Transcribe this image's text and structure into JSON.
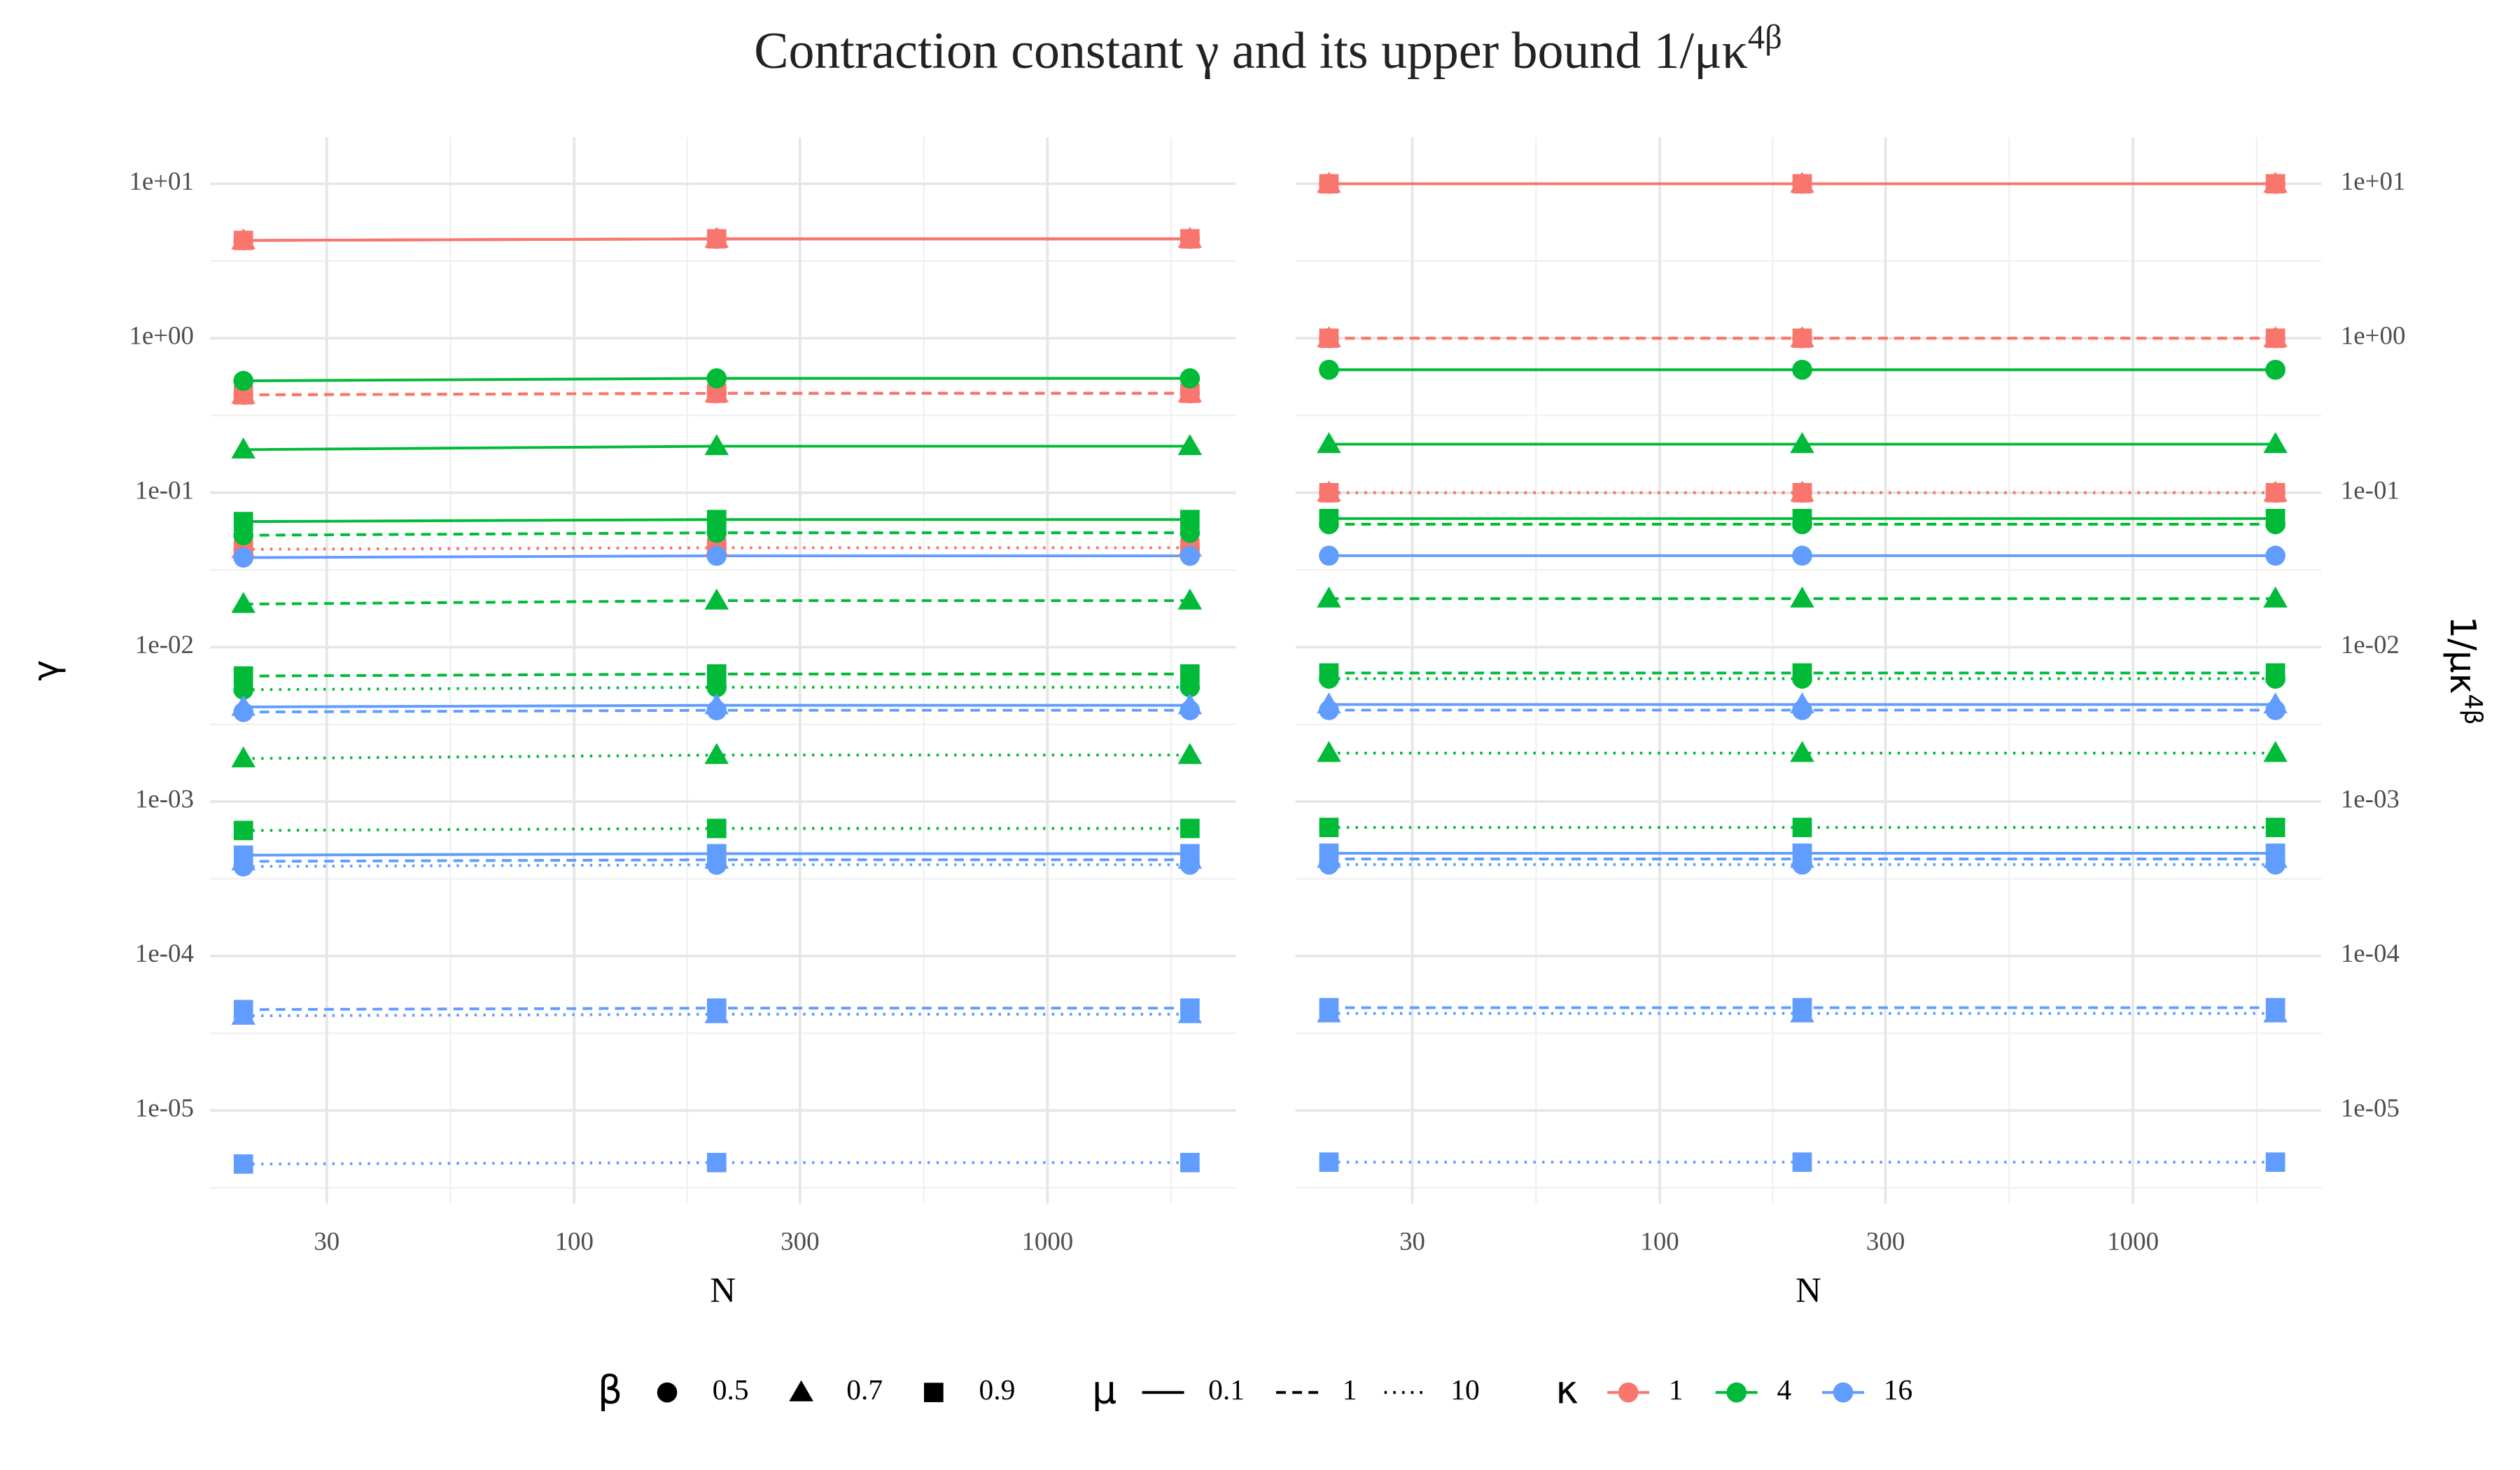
{
  "title": "Contraction constant γ and its upper bound 1/μκ",
  "title_sup": "4β",
  "legend": {
    "beta": {
      "title": "β",
      "labels": [
        0.5,
        0.7,
        0.9
      ],
      "shapes": [
        "circle",
        "triangle",
        "square"
      ]
    },
    "mu": {
      "title": "μ",
      "labels": [
        0.1,
        1,
        10
      ],
      "linetypes": [
        "solid",
        "dashed",
        "dotted"
      ]
    },
    "kappa": {
      "title": "κ",
      "labels": [
        1,
        4,
        16
      ],
      "colors": [
        "#F8766D",
        "#00BA38",
        "#619CFF"
      ]
    }
  },
  "chart_data": [
    {
      "type": "line",
      "log_x": true,
      "log_y": true,
      "grid": true,
      "minor_grid": true,
      "y_axis_side": "left",
      "xlabel": "N",
      "ylabel": "γ",
      "x": [
        20,
        200,
        2000
      ],
      "xlim": [
        17,
        2500
      ],
      "xticks": [
        30,
        100,
        300,
        1000
      ],
      "ylim": [
        2.5e-06,
        20
      ],
      "yticks": [
        {
          "value": 10,
          "label": "1e+01"
        },
        {
          "value": 1,
          "label": "1e+00"
        },
        {
          "value": 0.1,
          "label": "1e-01"
        },
        {
          "value": 0.01,
          "label": "1e-02"
        },
        {
          "value": 0.001,
          "label": "1e-03"
        },
        {
          "value": 0.0001,
          "label": "1e-04"
        },
        {
          "value": 1e-05,
          "label": "1e-05"
        }
      ],
      "series": [
        {
          "beta": 0.5,
          "mu": 0.1,
          "kappa": 1,
          "values": [
            4.3,
            4.4,
            4.4
          ]
        },
        {
          "beta": 0.5,
          "mu": 1,
          "kappa": 1,
          "values": [
            0.43,
            0.44,
            0.44
          ]
        },
        {
          "beta": 0.5,
          "mu": 10,
          "kappa": 1,
          "values": [
            0.043,
            0.044,
            0.044
          ]
        },
        {
          "beta": 0.7,
          "mu": 0.1,
          "kappa": 1,
          "values": [
            4.3,
            4.4,
            4.4
          ]
        },
        {
          "beta": 0.7,
          "mu": 1,
          "kappa": 1,
          "values": [
            0.43,
            0.44,
            0.44
          ]
        },
        {
          "beta": 0.7,
          "mu": 10,
          "kappa": 1,
          "values": [
            0.043,
            0.044,
            0.044
          ]
        },
        {
          "beta": 0.9,
          "mu": 0.1,
          "kappa": 1,
          "values": [
            4.3,
            4.4,
            4.4
          ]
        },
        {
          "beta": 0.9,
          "mu": 1,
          "kappa": 1,
          "values": [
            0.43,
            0.44,
            0.44
          ]
        },
        {
          "beta": 0.9,
          "mu": 10,
          "kappa": 1,
          "values": [
            0.043,
            0.044,
            0.044
          ]
        },
        {
          "beta": 0.5,
          "mu": 0.1,
          "kappa": 4,
          "values": [
            0.53,
            0.55,
            0.55
          ]
        },
        {
          "beta": 0.5,
          "mu": 1,
          "kappa": 4,
          "values": [
            0.053,
            0.055,
            0.055
          ]
        },
        {
          "beta": 0.5,
          "mu": 10,
          "kappa": 4,
          "values": [
            0.0053,
            0.0055,
            0.0055
          ]
        },
        {
          "beta": 0.7,
          "mu": 0.1,
          "kappa": 4,
          "values": [
            0.19,
            0.2,
            0.2
          ]
        },
        {
          "beta": 0.7,
          "mu": 1,
          "kappa": 4,
          "values": [
            0.019,
            0.02,
            0.02
          ]
        },
        {
          "beta": 0.7,
          "mu": 10,
          "kappa": 4,
          "values": [
            0.0019,
            0.002,
            0.002
          ]
        },
        {
          "beta": 0.9,
          "mu": 0.1,
          "kappa": 4,
          "values": [
            0.065,
            0.067,
            0.067
          ]
        },
        {
          "beta": 0.9,
          "mu": 1,
          "kappa": 4,
          "values": [
            0.0065,
            0.0067,
            0.0067
          ]
        },
        {
          "beta": 0.9,
          "mu": 10,
          "kappa": 4,
          "values": [
            0.00065,
            0.00067,
            0.00067
          ]
        },
        {
          "beta": 0.5,
          "mu": 0.1,
          "kappa": 16,
          "values": [
            0.038,
            0.039,
            0.039
          ]
        },
        {
          "beta": 0.5,
          "mu": 1,
          "kappa": 16,
          "values": [
            0.0038,
            0.0039,
            0.0039
          ]
        },
        {
          "beta": 0.5,
          "mu": 10,
          "kappa": 16,
          "values": [
            0.00038,
            0.00039,
            0.00039
          ]
        },
        {
          "beta": 0.7,
          "mu": 0.1,
          "kappa": 16,
          "values": [
            0.0041,
            0.0042,
            0.0042
          ]
        },
        {
          "beta": 0.7,
          "mu": 1,
          "kappa": 16,
          "values": [
            0.00041,
            0.00042,
            0.00042
          ]
        },
        {
          "beta": 0.7,
          "mu": 10,
          "kappa": 16,
          "values": [
            4.1e-05,
            4.2e-05,
            4.2e-05
          ]
        },
        {
          "beta": 0.9,
          "mu": 0.1,
          "kappa": 16,
          "values": [
            0.00045,
            0.00046,
            0.00046
          ]
        },
        {
          "beta": 0.9,
          "mu": 1,
          "kappa": 16,
          "values": [
            4.5e-05,
            4.6e-05,
            4.6e-05
          ]
        },
        {
          "beta": 0.9,
          "mu": 10,
          "kappa": 16,
          "values": [
            4.5e-06,
            4.6e-06,
            4.6e-06
          ]
        }
      ]
    },
    {
      "type": "line",
      "log_x": true,
      "log_y": true,
      "grid": true,
      "minor_grid": true,
      "y_axis_side": "right",
      "xlabel": "N",
      "ylabel": "1/μκ",
      "ylabel_sup": "4β",
      "x": [
        20,
        200,
        2000
      ],
      "xlim": [
        17,
        2500
      ],
      "xticks": [
        30,
        100,
        300,
        1000
      ],
      "ylim": [
        2.5e-06,
        20
      ],
      "yticks": [
        {
          "value": 10,
          "label": "1e+01"
        },
        {
          "value": 1,
          "label": "1e+00"
        },
        {
          "value": 0.1,
          "label": "1e-01"
        },
        {
          "value": 0.01,
          "label": "1e-02"
        },
        {
          "value": 0.001,
          "label": "1e-03"
        },
        {
          "value": 0.0001,
          "label": "1e-04"
        },
        {
          "value": 1e-05,
          "label": "1e-05"
        }
      ],
      "series": [
        {
          "beta": 0.5,
          "mu": 0.1,
          "kappa": 1,
          "values": [
            10,
            10,
            10
          ]
        },
        {
          "beta": 0.5,
          "mu": 1,
          "kappa": 1,
          "values": [
            1,
            1,
            1
          ]
        },
        {
          "beta": 0.5,
          "mu": 10,
          "kappa": 1,
          "values": [
            0.1,
            0.1,
            0.1
          ]
        },
        {
          "beta": 0.7,
          "mu": 0.1,
          "kappa": 1,
          "values": [
            10,
            10,
            10
          ]
        },
        {
          "beta": 0.7,
          "mu": 1,
          "kappa": 1,
          "values": [
            1,
            1,
            1
          ]
        },
        {
          "beta": 0.7,
          "mu": 10,
          "kappa": 1,
          "values": [
            0.1,
            0.1,
            0.1
          ]
        },
        {
          "beta": 0.9,
          "mu": 0.1,
          "kappa": 1,
          "values": [
            10,
            10,
            10
          ]
        },
        {
          "beta": 0.9,
          "mu": 1,
          "kappa": 1,
          "values": [
            1,
            1,
            1
          ]
        },
        {
          "beta": 0.9,
          "mu": 10,
          "kappa": 1,
          "values": [
            0.1,
            0.1,
            0.1
          ]
        },
        {
          "beta": 0.5,
          "mu": 0.1,
          "kappa": 4,
          "values": [
            0.625,
            0.625,
            0.625
          ]
        },
        {
          "beta": 0.5,
          "mu": 1,
          "kappa": 4,
          "values": [
            0.0625,
            0.0625,
            0.0625
          ]
        },
        {
          "beta": 0.5,
          "mu": 10,
          "kappa": 4,
          "values": [
            0.00625,
            0.00625,
            0.00625
          ]
        },
        {
          "beta": 0.7,
          "mu": 0.1,
          "kappa": 4,
          "values": [
            0.206,
            0.206,
            0.206
          ]
        },
        {
          "beta": 0.7,
          "mu": 1,
          "kappa": 4,
          "values": [
            0.0206,
            0.0206,
            0.0206
          ]
        },
        {
          "beta": 0.7,
          "mu": 10,
          "kappa": 4,
          "values": [
            0.00206,
            0.00206,
            0.00206
          ]
        },
        {
          "beta": 0.9,
          "mu": 0.1,
          "kappa": 4,
          "values": [
            0.068,
            0.068,
            0.068
          ]
        },
        {
          "beta": 0.9,
          "mu": 1,
          "kappa": 4,
          "values": [
            0.0068,
            0.0068,
            0.0068
          ]
        },
        {
          "beta": 0.9,
          "mu": 10,
          "kappa": 4,
          "values": [
            0.00068,
            0.00068,
            0.00068
          ]
        },
        {
          "beta": 0.5,
          "mu": 0.1,
          "kappa": 16,
          "values": [
            0.0391,
            0.0391,
            0.0391
          ]
        },
        {
          "beta": 0.5,
          "mu": 1,
          "kappa": 16,
          "values": [
            0.00391,
            0.00391,
            0.00391
          ]
        },
        {
          "beta": 0.5,
          "mu": 10,
          "kappa": 16,
          "values": [
            0.000391,
            0.000391,
            0.000391
          ]
        },
        {
          "beta": 0.7,
          "mu": 0.1,
          "kappa": 16,
          "values": [
            0.00425,
            0.00425,
            0.00425
          ]
        },
        {
          "beta": 0.7,
          "mu": 1,
          "kappa": 16,
          "values": [
            0.000425,
            0.000425,
            0.000425
          ]
        },
        {
          "beta": 0.7,
          "mu": 10,
          "kappa": 16,
          "values": [
            4.25e-05,
            4.25e-05,
            4.25e-05
          ]
        },
        {
          "beta": 0.9,
          "mu": 0.1,
          "kappa": 16,
          "values": [
            0.000463,
            0.000463,
            0.000463
          ]
        },
        {
          "beta": 0.9,
          "mu": 1,
          "kappa": 16,
          "values": [
            4.63e-05,
            4.63e-05,
            4.63e-05
          ]
        },
        {
          "beta": 0.9,
          "mu": 10,
          "kappa": 16,
          "values": [
            4.63e-06,
            4.63e-06,
            4.63e-06
          ]
        }
      ]
    }
  ]
}
